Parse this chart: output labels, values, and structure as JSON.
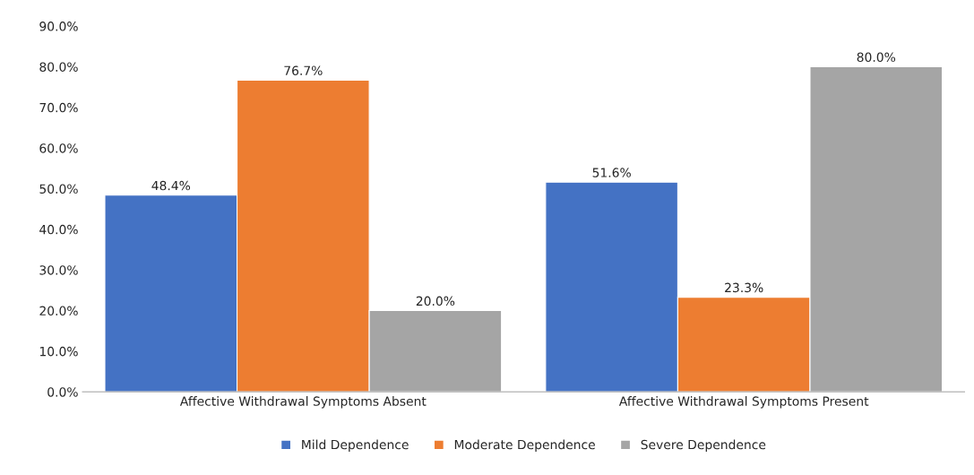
{
  "chart_data": {
    "type": "bar",
    "categories": [
      "Affective Withdrawal Symptoms Absent",
      "Affective Withdrawal Symptoms Present"
    ],
    "series": [
      {
        "name": "Mild Dependence",
        "color": "#4472c4",
        "values": [
          48.4,
          51.6
        ],
        "value_labels": [
          "48.4%",
          "51.6%"
        ]
      },
      {
        "name": "Moderate Dependence",
        "color": "#ed7d31",
        "values": [
          76.7,
          23.3
        ],
        "value_labels": [
          "76.7%",
          "23.3%"
        ]
      },
      {
        "name": "Severe Dependence",
        "color": "#a5a5a5",
        "values": [
          20.0,
          80.0
        ],
        "value_labels": [
          "20.0%",
          "80.0%"
        ]
      }
    ],
    "ylim": [
      0,
      90
    ],
    "yticks": [
      {
        "value": 0,
        "label": "0.0%"
      },
      {
        "value": 10,
        "label": "10.0%"
      },
      {
        "value": 20,
        "label": "20.0%"
      },
      {
        "value": 30,
        "label": "30.0%"
      },
      {
        "value": 40,
        "label": "40.0%"
      },
      {
        "value": 50,
        "label": "50.0%"
      },
      {
        "value": 60,
        "label": "60.0%"
      },
      {
        "value": 70,
        "label": "70.0%"
      },
      {
        "value": 80,
        "label": "80.0%"
      },
      {
        "value": 90,
        "label": "90.0%"
      }
    ],
    "grid": false,
    "legend": "bottom"
  }
}
